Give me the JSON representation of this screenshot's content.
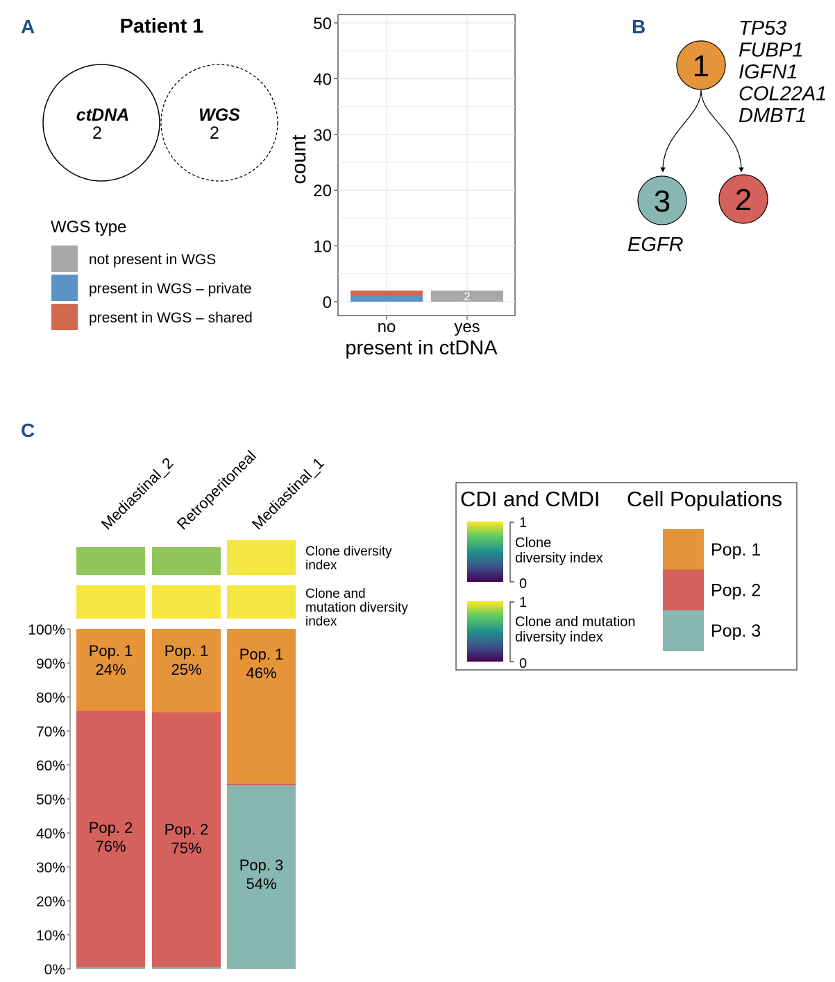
{
  "panel_labels": {
    "a": "A",
    "b": "B",
    "c": "C"
  },
  "colors": {
    "label_blue": "#1f4e8c",
    "pop1": "#e5943a",
    "pop2": "#d4615b",
    "pop3": "#88b6b0",
    "not_present": "#a8a8a8",
    "private": "#5b93c7",
    "shared": "#d2694f",
    "cdi_green": "#91c45a",
    "cdi_yellow": "#f5e642"
  },
  "venn": {
    "title": "Patient 1",
    "left_label": "ctDNA",
    "left_count": "2",
    "right_label": "WGS",
    "right_count": "2"
  },
  "wgs_legend": {
    "title": "WGS type",
    "items": [
      {
        "label": "not present in WGS",
        "color": "#a8a8a8"
      },
      {
        "label": "present in WGS – private",
        "color": "#5b93c7"
      },
      {
        "label": "present in WGS – shared",
        "color": "#d2694f"
      }
    ]
  },
  "tree": {
    "nodes": [
      {
        "id": "1",
        "color": "#e5943a"
      },
      {
        "id": "3",
        "color": "#88b6b0"
      },
      {
        "id": "2",
        "color": "#d4615b"
      }
    ],
    "genes_node1": [
      "TP53",
      "FUBP1",
      "IGFN1",
      "COL22A1",
      "DMBT1"
    ],
    "genes_node3": [
      "EGFR"
    ]
  },
  "chart_data": [
    {
      "type": "bar",
      "stacked": true,
      "title": "",
      "xlabel": "present in ctDNA",
      "ylabel": "count",
      "categories": [
        "no",
        "yes"
      ],
      "ylim": [
        0,
        50
      ],
      "yticks": [
        "0",
        "10",
        "20",
        "30",
        "40",
        "50"
      ],
      "grid": true,
      "series": [
        {
          "name": "present in WGS – private",
          "values": [
            1,
            0
          ]
        },
        {
          "name": "present in WGS – shared",
          "values": [
            1,
            0
          ]
        },
        {
          "name": "not present in WGS",
          "values": [
            0,
            2
          ]
        }
      ],
      "data_labels": [
        "",
        "2"
      ]
    },
    {
      "type": "bar",
      "stacked": true,
      "categories": [
        "Mediastinal_2",
        "Retroperitoneal",
        "Mediastinal_1"
      ],
      "ylim": [
        0,
        100
      ],
      "yticks": [
        "0%",
        "10%",
        "20%",
        "30%",
        "40%",
        "50%",
        "60%",
        "70%",
        "80%",
        "90%",
        "100%"
      ],
      "series": [
        {
          "name": "Pop. 3",
          "values": [
            0.5,
            0.5,
            54
          ]
        },
        {
          "name": "Pop. 2",
          "values": [
            75.5,
            75,
            0.5
          ]
        },
        {
          "name": "Pop. 1",
          "values": [
            24,
            24.5,
            45.5
          ]
        }
      ],
      "segment_labels": [
        [
          {
            "pop": "Pop. 1",
            "pct": "24%"
          },
          {
            "pop": "Pop. 2",
            "pct": "76%"
          }
        ],
        [
          {
            "pop": "Pop. 1",
            "pct": "25%"
          },
          {
            "pop": "Pop. 2",
            "pct": "75%"
          }
        ],
        [
          {
            "pop": "Pop. 1",
            "pct": "46%"
          },
          {
            "pop": "Pop. 3",
            "pct": "54%"
          }
        ]
      ],
      "heat_rows": [
        {
          "label": [
            "Clone diversity",
            "index"
          ],
          "values": [
            0.6,
            0.6,
            1.0
          ]
        },
        {
          "label": [
            "Clone and",
            "mutation diversity",
            "index"
          ],
          "values": [
            1.0,
            1.0,
            1.0
          ]
        }
      ]
    }
  ],
  "legend_c": {
    "title_left": "CDI and CMDI",
    "title_right": "Cell Populations",
    "cdi": {
      "label": [
        "Clone",
        "diversity index"
      ],
      "max": "1",
      "min": "0"
    },
    "cmdi": {
      "label": [
        "Clone and mutation",
        "diversity index"
      ],
      "max": "1",
      "min": "0"
    },
    "pops": [
      {
        "label": "Pop. 1",
        "color": "#e5943a"
      },
      {
        "label": "Pop. 2",
        "color": "#d4615b"
      },
      {
        "label": "Pop. 3",
        "color": "#88b6b0"
      }
    ]
  }
}
